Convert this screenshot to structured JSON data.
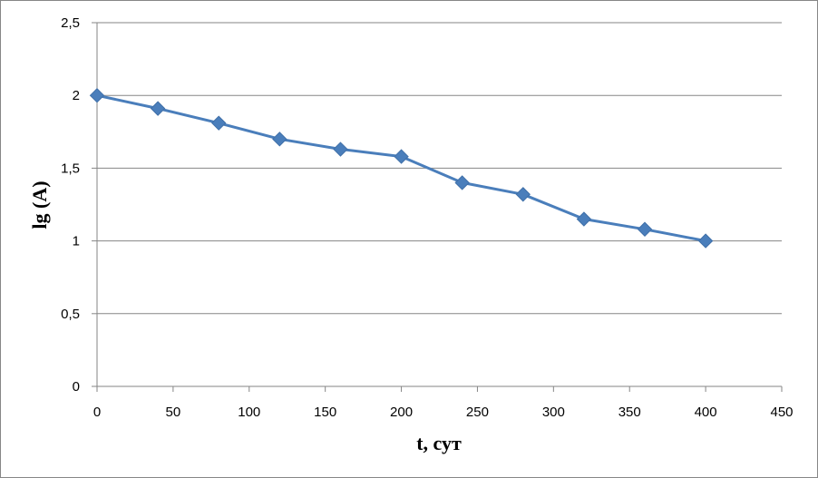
{
  "chart_data": {
    "type": "line",
    "title": "",
    "xlabel": "t, сут",
    "ylabel": "lg (A)",
    "xlim": [
      0,
      450
    ],
    "ylim": [
      0,
      2.5
    ],
    "x_ticks": [
      0,
      50,
      100,
      150,
      200,
      250,
      300,
      350,
      400,
      450
    ],
    "y_ticks": [
      {
        "value": 0,
        "label": "0"
      },
      {
        "value": 0.5,
        "label": "0,5"
      },
      {
        "value": 1,
        "label": "1"
      },
      {
        "value": 1.5,
        "label": "1,5"
      },
      {
        "value": 2,
        "label": "2"
      },
      {
        "value": 2.5,
        "label": "2,5"
      }
    ],
    "grid": "horizontal",
    "legend": "none",
    "series": [
      {
        "color": "#4A7EBB",
        "marker": "diamond",
        "x": [
          0,
          40,
          80,
          120,
          160,
          200,
          240,
          280,
          320,
          360,
          400
        ],
        "y": [
          2.0,
          1.91,
          1.81,
          1.7,
          1.63,
          1.58,
          1.4,
          1.32,
          1.15,
          1.08,
          1.0
        ]
      }
    ]
  }
}
